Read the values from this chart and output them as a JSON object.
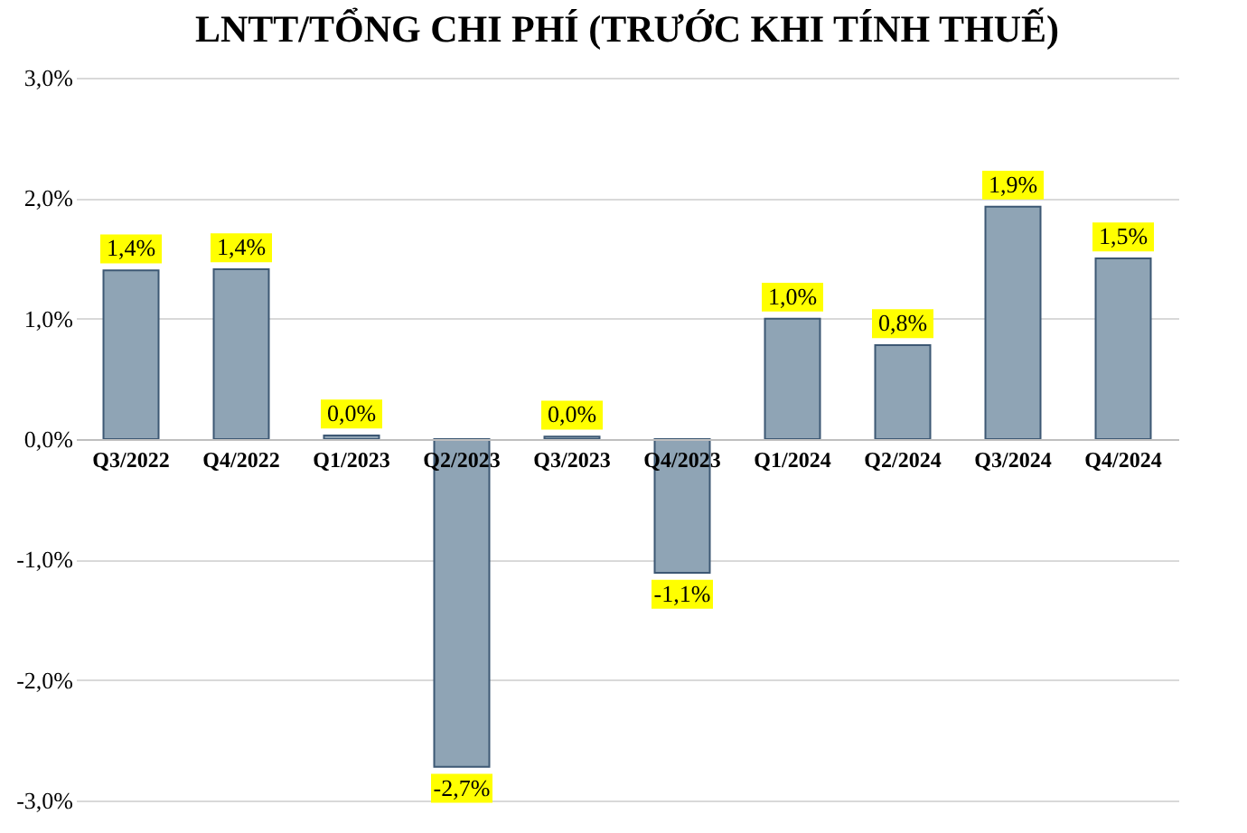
{
  "chart_data": {
    "type": "bar",
    "title": "LNTT/TỔNG CHI PHÍ (TRƯỚC KHI TÍNH THUẾ)",
    "categories": [
      "Q3/2022",
      "Q4/2022",
      "Q1/2023",
      "Q2/2023",
      "Q3/2023",
      "Q4/2023",
      "Q1/2024",
      "Q2/2024",
      "Q3/2024",
      "Q4/2024"
    ],
    "values": [
      1.4,
      1.41,
      0.03,
      -2.72,
      0.02,
      -1.11,
      1.0,
      0.78,
      1.93,
      1.5
    ],
    "value_labels": [
      "1,4%",
      "1,4%",
      "0,0%",
      "-2,7%",
      "0,0%",
      "-1,1%",
      "1,0%",
      "0,8%",
      "1,9%",
      "1,5%"
    ],
    "color": "#8fa4b5",
    "ylim": [
      -3,
      3
    ],
    "yticks": [
      {
        "value": -3,
        "label": "-3,0%"
      },
      {
        "value": -2,
        "label": "-2,0%"
      },
      {
        "value": -1,
        "label": "-1,0%"
      },
      {
        "value": 0,
        "label": "0,0%"
      },
      {
        "value": 1,
        "label": "1,0%"
      },
      {
        "value": 2,
        "label": "2,0%"
      },
      {
        "value": 3,
        "label": "3,0%"
      }
    ],
    "grid": "y"
  }
}
